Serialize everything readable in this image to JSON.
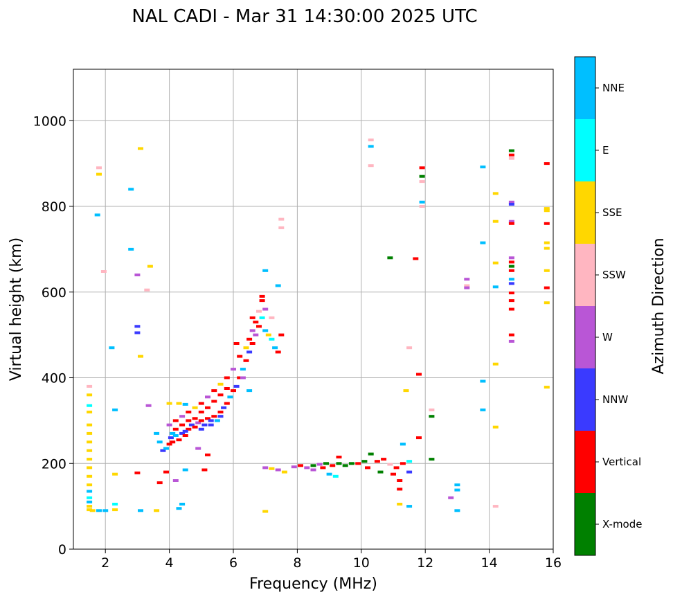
{
  "chart_data": {
    "type": "scatter",
    "title": "NAL CADI - Mar 31 14:30:00 2025 UTC",
    "xlabel": "Frequency (MHz)",
    "ylabel": "Virtual height (km)",
    "xlim": [
      1,
      16
    ],
    "ylim": [
      0,
      1120
    ],
    "xticks": [
      "2",
      "4",
      "6",
      "8",
      "10",
      "12",
      "14",
      "16"
    ],
    "yticks": [
      "0",
      "200",
      "400",
      "600",
      "800",
      "1000"
    ],
    "grid": true,
    "colorbar": {
      "label": "Azimuth Direction",
      "categories": [
        {
          "name": "X-mode",
          "color": "#008000"
        },
        {
          "name": "Vertical",
          "color": "#ff0000"
        },
        {
          "name": "NNW",
          "color": "#3a3aff"
        },
        {
          "name": "W",
          "color": "#b956d6"
        },
        {
          "name": "SSW",
          "color": "#ffb6c1"
        },
        {
          "name": "SSE",
          "color": "#ffd700"
        },
        {
          "name": "E",
          "color": "#00ffff"
        },
        {
          "name": "NNE",
          "color": "#00bfff"
        }
      ]
    },
    "points": [
      [
        1.5,
        380,
        "SSW"
      ],
      [
        1.5,
        360,
        "SSE"
      ],
      [
        1.5,
        335,
        "E"
      ],
      [
        1.5,
        320,
        "SSE"
      ],
      [
        1.5,
        290,
        "SSE"
      ],
      [
        1.5,
        270,
        "SSE"
      ],
      [
        1.5,
        250,
        "SSE"
      ],
      [
        1.5,
        230,
        "SSE"
      ],
      [
        1.5,
        210,
        "SSE"
      ],
      [
        1.5,
        190,
        "SSE"
      ],
      [
        1.5,
        170,
        "SSE"
      ],
      [
        1.5,
        150,
        "SSE"
      ],
      [
        1.5,
        135,
        "NNE"
      ],
      [
        1.5,
        120,
        "E"
      ],
      [
        1.5,
        110,
        "NNE"
      ],
      [
        1.5,
        100,
        "SSE"
      ],
      [
        1.5,
        92,
        "SSE"
      ],
      [
        1.6,
        90,
        "SSE"
      ],
      [
        1.8,
        90,
        "NNE"
      ],
      [
        2.0,
        90,
        "NNE"
      ],
      [
        2.3,
        92,
        "SSE"
      ],
      [
        2.3,
        105,
        "E"
      ],
      [
        1.75,
        780,
        "NNE"
      ],
      [
        1.8,
        890,
        "SSW"
      ],
      [
        1.8,
        875,
        "SSE"
      ],
      [
        1.95,
        648,
        "SSW"
      ],
      [
        2.2,
        470,
        "NNE"
      ],
      [
        2.3,
        325,
        "NNE"
      ],
      [
        2.3,
        175,
        "SSE"
      ],
      [
        2.8,
        840,
        "NNE"
      ],
      [
        2.8,
        700,
        "NNE"
      ],
      [
        3.0,
        640,
        "W"
      ],
      [
        3.0,
        520,
        "NNW"
      ],
      [
        3.0,
        505,
        "NNW"
      ],
      [
        3.1,
        935,
        "SSE"
      ],
      [
        3.1,
        450,
        "SSE"
      ],
      [
        3.3,
        605,
        "SSW"
      ],
      [
        3.35,
        335,
        "W"
      ],
      [
        3.4,
        660,
        "SSE"
      ],
      [
        3.1,
        90,
        "NNE"
      ],
      [
        3.6,
        90,
        "SSE"
      ],
      [
        3.0,
        178,
        "Vertical"
      ],
      [
        3.7,
        155,
        "Vertical"
      ],
      [
        3.9,
        180,
        "Vertical"
      ],
      [
        3.8,
        230,
        "NNW"
      ],
      [
        3.9,
        235,
        "NNE"
      ],
      [
        4.0,
        245,
        "Vertical"
      ],
      [
        4.05,
        260,
        "NNW"
      ],
      [
        4.1,
        250,
        "Vertical"
      ],
      [
        4.2,
        265,
        "NNE"
      ],
      [
        4.3,
        255,
        "Vertical"
      ],
      [
        4.4,
        270,
        "NNW"
      ],
      [
        4.5,
        265,
        "Vertical"
      ],
      [
        4.6,
        280,
        "Vertical"
      ],
      [
        4.7,
        290,
        "NNW"
      ],
      [
        4.8,
        285,
        "Vertical"
      ],
      [
        4.9,
        295,
        "W"
      ],
      [
        5.0,
        300,
        "Vertical"
      ],
      [
        5.1,
        290,
        "NNW"
      ],
      [
        5.2,
        305,
        "Vertical"
      ],
      [
        5.3,
        300,
        "NNW"
      ],
      [
        5.4,
        310,
        "Vertical"
      ],
      [
        5.5,
        300,
        "NNE"
      ],
      [
        5.6,
        320,
        "Vertical"
      ],
      [
        5.7,
        330,
        "NNW"
      ],
      [
        5.8,
        340,
        "Vertical"
      ],
      [
        5.9,
        355,
        "NNE"
      ],
      [
        6.0,
        370,
        "Vertical"
      ],
      [
        6.1,
        380,
        "NNW"
      ],
      [
        6.2,
        400,
        "Vertical"
      ],
      [
        6.3,
        420,
        "NNE"
      ],
      [
        6.4,
        440,
        "Vertical"
      ],
      [
        6.5,
        460,
        "NNW"
      ],
      [
        6.6,
        480,
        "Vertical"
      ],
      [
        6.7,
        500,
        "W"
      ],
      [
        6.8,
        520,
        "Vertical"
      ],
      [
        6.9,
        540,
        "E"
      ],
      [
        7.0,
        510,
        "NNE"
      ],
      [
        7.1,
        500,
        "SSE"
      ],
      [
        7.2,
        490,
        "E"
      ],
      [
        7.3,
        470,
        "NNE"
      ],
      [
        7.4,
        460,
        "Vertical"
      ],
      [
        4.0,
        290,
        "W"
      ],
      [
        4.2,
        300,
        "Vertical"
      ],
      [
        4.4,
        310,
        "W"
      ],
      [
        4.6,
        320,
        "Vertical"
      ],
      [
        4.8,
        330,
        "SSE"
      ],
      [
        5.0,
        340,
        "Vertical"
      ],
      [
        5.2,
        355,
        "W"
      ],
      [
        5.4,
        370,
        "Vertical"
      ],
      [
        5.6,
        385,
        "SSE"
      ],
      [
        5.8,
        400,
        "Vertical"
      ],
      [
        6.0,
        420,
        "W"
      ],
      [
        6.2,
        450,
        "Vertical"
      ],
      [
        6.4,
        470,
        "SSE"
      ],
      [
        6.5,
        490,
        "Vertical"
      ],
      [
        6.6,
        510,
        "W"
      ],
      [
        6.7,
        530,
        "Vertical"
      ],
      [
        6.8,
        555,
        "SSW"
      ],
      [
        6.9,
        580,
        "Vertical"
      ],
      [
        7.0,
        560,
        "W"
      ],
      [
        7.2,
        540,
        "SSW"
      ],
      [
        7.5,
        500,
        "Vertical"
      ],
      [
        7.5,
        770,
        "SSW"
      ],
      [
        7.5,
        750,
        "SSW"
      ],
      [
        7.4,
        615,
        "NNE"
      ],
      [
        7.0,
        650,
        "NNE"
      ],
      [
        6.6,
        540,
        "Vertical"
      ],
      [
        6.9,
        590,
        "Vertical"
      ],
      [
        4.2,
        280,
        "Vertical"
      ],
      [
        4.4,
        290,
        "Vertical"
      ],
      [
        4.6,
        300,
        "Vertical"
      ],
      [
        4.8,
        305,
        "Vertical"
      ],
      [
        5.0,
        320,
        "Vertical"
      ],
      [
        5.2,
        330,
        "Vertical"
      ],
      [
        5.4,
        345,
        "Vertical"
      ],
      [
        5.6,
        360,
        "Vertical"
      ],
      [
        5.8,
        375,
        "Vertical"
      ],
      [
        5.0,
        280,
        "NNW"
      ],
      [
        5.3,
        290,
        "NNW"
      ],
      [
        5.6,
        310,
        "NNW"
      ],
      [
        4.5,
        275,
        "NNW"
      ],
      [
        4.1,
        270,
        "NNE"
      ],
      [
        4.3,
        340,
        "SSE"
      ],
      [
        4.5,
        338,
        "NNE"
      ],
      [
        4.0,
        340,
        "SSE"
      ],
      [
        3.6,
        270,
        "NNE"
      ],
      [
        3.7,
        250,
        "NNE"
      ],
      [
        4.9,
        235,
        "W"
      ],
      [
        5.2,
        220,
        "Vertical"
      ],
      [
        4.5,
        185,
        "NNE"
      ],
      [
        5.1,
        185,
        "Vertical"
      ],
      [
        4.2,
        160,
        "W"
      ],
      [
        4.3,
        95,
        "NNE"
      ],
      [
        4.4,
        105,
        "NNE"
      ],
      [
        6.1,
        480,
        "Vertical"
      ],
      [
        6.3,
        400,
        "W"
      ],
      [
        6.5,
        370,
        "NNE"
      ],
      [
        7.0,
        190,
        "W"
      ],
      [
        7.2,
        188,
        "SSE"
      ],
      [
        7.4,
        185,
        "W"
      ],
      [
        7.6,
        180,
        "SSE"
      ],
      [
        7.9,
        192,
        "W"
      ],
      [
        8.1,
        195,
        "Vertical"
      ],
      [
        8.3,
        190,
        "W"
      ],
      [
        8.5,
        195,
        "X-mode"
      ],
      [
        8.7,
        198,
        "W"
      ],
      [
        8.9,
        200,
        "X-mode"
      ],
      [
        9.1,
        195,
        "Vertical"
      ],
      [
        9.3,
        200,
        "X-mode"
      ],
      [
        9.5,
        195,
        "X-mode"
      ],
      [
        9.7,
        200,
        "X-mode"
      ],
      [
        9.9,
        200,
        "Vertical"
      ],
      [
        10.1,
        205,
        "X-mode"
      ],
      [
        10.3,
        222,
        "X-mode"
      ],
      [
        10.5,
        205,
        "Vertical"
      ],
      [
        10.7,
        210,
        "Vertical"
      ],
      [
        10.9,
        198,
        "SSW"
      ],
      [
        11.1,
        190,
        "Vertical"
      ],
      [
        11.3,
        200,
        "Vertical"
      ],
      [
        11.5,
        205,
        "E"
      ],
      [
        9.2,
        170,
        "E"
      ],
      [
        9.0,
        175,
        "NNE"
      ],
      [
        8.8,
        190,
        "Vertical"
      ],
      [
        8.5,
        185,
        "W"
      ],
      [
        9.3,
        215,
        "Vertical"
      ],
      [
        10.2,
        190,
        "Vertical"
      ],
      [
        10.6,
        180,
        "X-mode"
      ],
      [
        11.0,
        175,
        "Vertical"
      ],
      [
        11.5,
        180,
        "NNW"
      ],
      [
        11.2,
        160,
        "Vertical"
      ],
      [
        11.2,
        140,
        "Vertical"
      ],
      [
        11.2,
        105,
        "SSE"
      ],
      [
        11.5,
        100,
        "NNE"
      ],
      [
        11.3,
        245,
        "NNE"
      ],
      [
        11.8,
        260,
        "Vertical"
      ],
      [
        12.2,
        210,
        "X-mode"
      ],
      [
        7.0,
        88,
        "SSE"
      ],
      [
        10.3,
        955,
        "SSW"
      ],
      [
        10.3,
        940,
        "NNE"
      ],
      [
        10.3,
        895,
        "SSW"
      ],
      [
        10.9,
        680,
        "X-mode"
      ],
      [
        11.7,
        678,
        "Vertical"
      ],
      [
        11.8,
        408,
        "Vertical"
      ],
      [
        11.5,
        470,
        "SSW"
      ],
      [
        11.4,
        370,
        "SSE"
      ],
      [
        11.9,
        890,
        "Vertical"
      ],
      [
        11.9,
        870,
        "X-mode"
      ],
      [
        11.9,
        858,
        "SSW"
      ],
      [
        11.9,
        810,
        "NNE"
      ],
      [
        11.9,
        800,
        "SSW"
      ],
      [
        12.2,
        325,
        "SSW"
      ],
      [
        12.2,
        310,
        "X-mode"
      ],
      [
        12.8,
        120,
        "W"
      ],
      [
        13.0,
        150,
        "NNE"
      ],
      [
        13.0,
        138,
        "NNE"
      ],
      [
        13.0,
        90,
        "NNE"
      ],
      [
        13.3,
        630,
        "W"
      ],
      [
        13.3,
        615,
        "SSW"
      ],
      [
        13.3,
        610,
        "W"
      ],
      [
        13.8,
        892,
        "NNE"
      ],
      [
        13.8,
        715,
        "NNE"
      ],
      [
        13.8,
        392,
        "NNE"
      ],
      [
        13.8,
        325,
        "NNE"
      ],
      [
        14.2,
        830,
        "SSE"
      ],
      [
        14.2,
        765,
        "SSE"
      ],
      [
        14.2,
        668,
        "SSE"
      ],
      [
        14.2,
        612,
        "NNE"
      ],
      [
        14.2,
        432,
        "SSE"
      ],
      [
        14.2,
        285,
        "SSE"
      ],
      [
        14.2,
        100,
        "SSW"
      ],
      [
        14.7,
        930,
        "X-mode"
      ],
      [
        14.7,
        920,
        "Vertical"
      ],
      [
        14.7,
        912,
        "SSW"
      ],
      [
        14.7,
        810,
        "W"
      ],
      [
        14.7,
        805,
        "NNW"
      ],
      [
        14.7,
        765,
        "W"
      ],
      [
        14.7,
        760,
        "Vertical"
      ],
      [
        14.7,
        680,
        "W"
      ],
      [
        14.7,
        670,
        "Vertical"
      ],
      [
        14.7,
        660,
        "X-mode"
      ],
      [
        14.7,
        650,
        "Vertical"
      ],
      [
        14.7,
        630,
        "NNE"
      ],
      [
        14.7,
        620,
        "NNW"
      ],
      [
        14.7,
        598,
        "Vertical"
      ],
      [
        14.7,
        580,
        "Vertical"
      ],
      [
        14.7,
        560,
        "Vertical"
      ],
      [
        14.7,
        500,
        "Vertical"
      ],
      [
        14.7,
        485,
        "W"
      ],
      [
        15.8,
        900,
        "Vertical"
      ],
      [
        15.8,
        795,
        "SSE"
      ],
      [
        15.8,
        790,
        "SSE"
      ],
      [
        15.8,
        760,
        "Vertical"
      ],
      [
        15.8,
        715,
        "SSE"
      ],
      [
        15.8,
        702,
        "SSE"
      ],
      [
        15.8,
        650,
        "SSE"
      ],
      [
        15.8,
        610,
        "Vertical"
      ],
      [
        15.8,
        575,
        "SSE"
      ],
      [
        15.8,
        378,
        "SSE"
      ]
    ]
  }
}
